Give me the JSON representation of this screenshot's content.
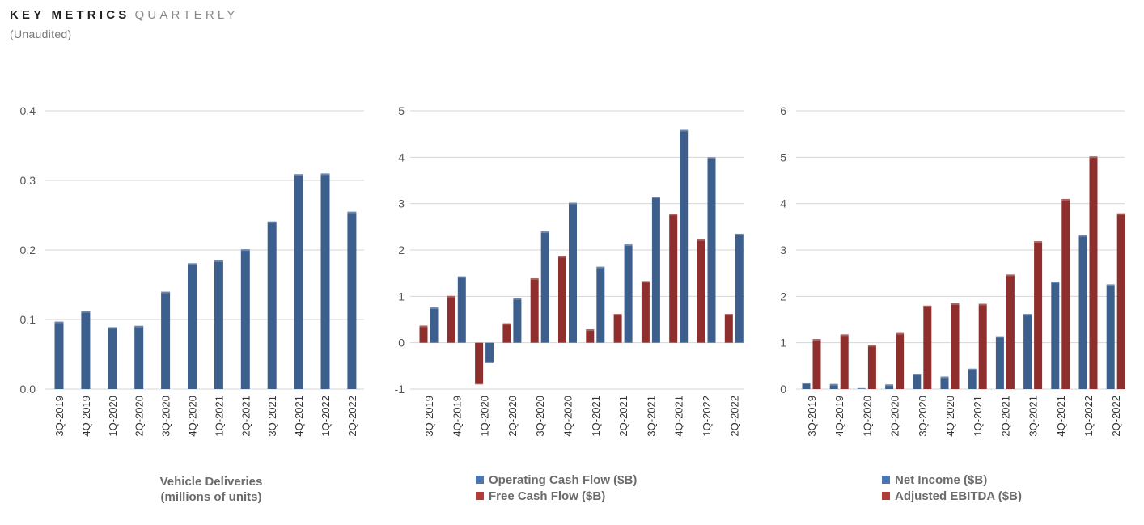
{
  "header": {
    "title_main": "KEY METRICS",
    "title_sub": "QUARTERLY",
    "subtitle": "(Unaudited)"
  },
  "colors": {
    "blue": "#3d5f8e",
    "red": "#8e2f2d",
    "legend_blue": "#4a76b4",
    "legend_red": "#b33b38"
  },
  "chart_data": [
    {
      "type": "bar",
      "categories": [
        "3Q-2019",
        "4Q-2019",
        "1Q-2020",
        "2Q-2020",
        "3Q-2020",
        "4Q-2020",
        "1Q-2021",
        "2Q-2021",
        "3Q-2021",
        "4Q-2021",
        "1Q-2022",
        "2Q-2022"
      ],
      "series": [
        {
          "name": "",
          "color": "blue",
          "values": [
            0.097,
            0.112,
            0.089,
            0.091,
            0.14,
            0.181,
            0.185,
            0.201,
            0.241,
            0.309,
            0.31,
            0.255
          ]
        }
      ],
      "ylim": [
        0,
        0.4
      ],
      "yticks": [
        0.0,
        0.1,
        0.2,
        0.3,
        0.4
      ],
      "ytick_labels": [
        "0.0",
        "0.1",
        "0.2",
        "0.3",
        "0.4"
      ],
      "xlabel_lines": [
        "Vehicle Deliveries",
        "(millions of units)"
      ],
      "legend": []
    },
    {
      "type": "bar",
      "categories": [
        "3Q-2019",
        "4Q-2019",
        "1Q-2020",
        "2Q-2020",
        "3Q-2020",
        "4Q-2020",
        "1Q-2021",
        "2Q-2021",
        "3Q-2021",
        "4Q-2021",
        "1Q-2022",
        "2Q-2022"
      ],
      "series": [
        {
          "name": "Free Cash Flow ($B)",
          "color": "red",
          "values": [
            0.37,
            1.01,
            -0.9,
            0.42,
            1.39,
            1.87,
            0.29,
            0.62,
            1.33,
            2.78,
            2.23,
            0.62
          ]
        },
        {
          "name": "Operating Cash Flow ($B)",
          "color": "blue",
          "values": [
            0.76,
            1.43,
            -0.44,
            0.96,
            2.4,
            3.02,
            1.64,
            2.12,
            3.15,
            4.59,
            4.0,
            2.35
          ]
        }
      ],
      "ylim": [
        -1,
        5
      ],
      "yticks": [
        -1,
        0,
        1,
        2,
        3,
        4,
        5
      ],
      "ytick_labels": [
        "-1",
        "0",
        "1",
        "2",
        "3",
        "4",
        "5"
      ],
      "xlabel_lines": [],
      "legend": [
        {
          "label": "Operating Cash Flow ($B)",
          "color": "legend_blue"
        },
        {
          "label": "Free Cash Flow ($B)",
          "color": "legend_red"
        }
      ]
    },
    {
      "type": "bar",
      "categories": [
        "3Q-2019",
        "4Q-2019",
        "1Q-2020",
        "2Q-2020",
        "3Q-2020",
        "4Q-2020",
        "1Q-2021",
        "2Q-2021",
        "3Q-2021",
        "4Q-2021",
        "1Q-2022",
        "2Q-2022"
      ],
      "series": [
        {
          "name": "Net Income ($B)",
          "color": "blue",
          "values": [
            0.14,
            0.11,
            0.02,
            0.1,
            0.33,
            0.27,
            0.44,
            1.14,
            1.62,
            2.32,
            3.32,
            2.26
          ]
        },
        {
          "name": "Adjusted EBITDA ($B)",
          "color": "red",
          "values": [
            1.08,
            1.18,
            0.95,
            1.21,
            1.8,
            1.85,
            1.84,
            2.47,
            3.19,
            4.1,
            5.02,
            3.79
          ]
        }
      ],
      "ylim": [
        0,
        6
      ],
      "yticks": [
        0,
        1,
        2,
        3,
        4,
        5,
        6
      ],
      "ytick_labels": [
        "0",
        "1",
        "2",
        "3",
        "4",
        "5",
        "6"
      ],
      "xlabel_lines": [],
      "legend": [
        {
          "label": "Net Income ($B)",
          "color": "legend_blue"
        },
        {
          "label": "Adjusted EBITDA ($B)",
          "color": "legend_red"
        }
      ]
    }
  ]
}
